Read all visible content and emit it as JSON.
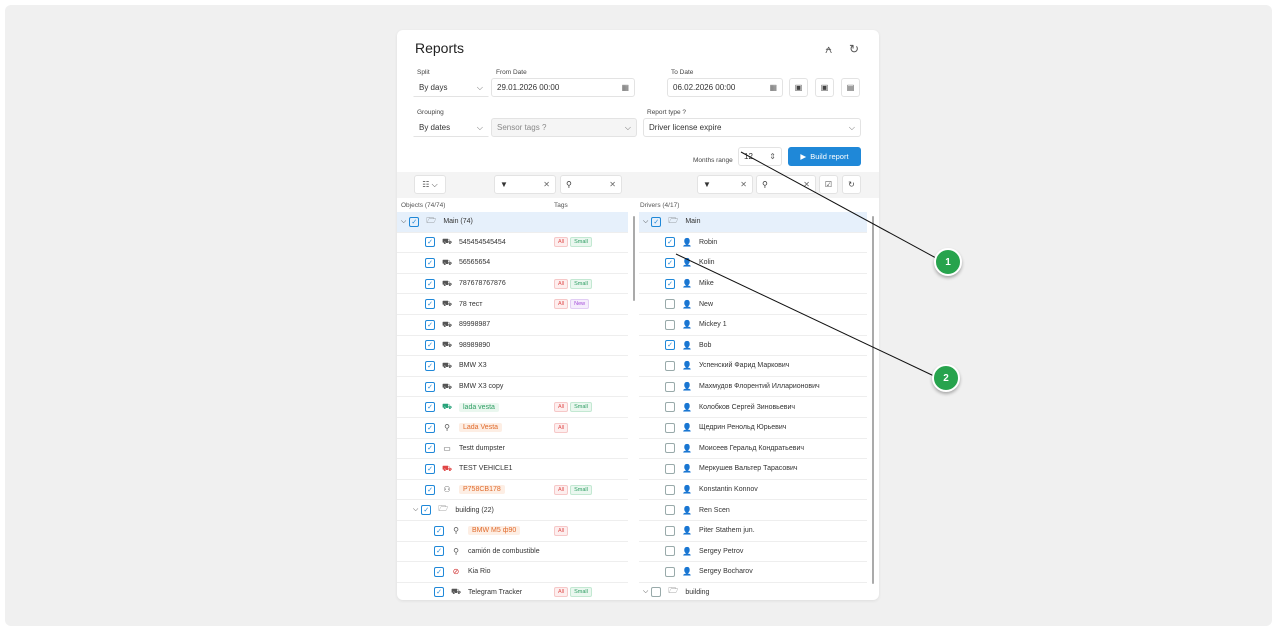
{
  "header": {
    "title": "Reports",
    "icons": [
      "user-settings-icon",
      "refresh-icon"
    ]
  },
  "form": {
    "split": {
      "label": "Split",
      "value": "By days"
    },
    "from": {
      "label": "From Date",
      "value": "29.01.2026 00:00"
    },
    "to": {
      "label": "To Date",
      "value": "06.02.2026 00:00"
    },
    "grouping": {
      "label": "Grouping",
      "value": "By dates"
    },
    "sensor_tags": {
      "placeholder": "Sensor tags"
    },
    "report_type": {
      "label": "Report type",
      "value": "Driver license expire"
    },
    "months_range": {
      "label": "Months range",
      "value": "12"
    },
    "build_label": "Build report"
  },
  "objects": {
    "header": "Objects (74/74)",
    "tags_header": "Tags",
    "rows": [
      {
        "name": "Main (74)",
        "level": 0,
        "group": true,
        "checked": true,
        "selected": true,
        "tags": []
      },
      {
        "name": "545454545454",
        "level": 1,
        "icon": "car",
        "checked": true,
        "tags": [
          "All",
          "Small"
        ]
      },
      {
        "name": "56565654",
        "level": 1,
        "icon": "car",
        "checked": true,
        "tags": []
      },
      {
        "name": "787678767876",
        "level": 1,
        "icon": "car",
        "checked": true,
        "tags": [
          "All",
          "Small"
        ]
      },
      {
        "name": "78 тест",
        "level": 1,
        "icon": "car",
        "checked": true,
        "tags": [
          "All",
          "New"
        ]
      },
      {
        "name": "89998987",
        "level": 1,
        "icon": "car",
        "checked": true,
        "tags": []
      },
      {
        "name": "98989890",
        "level": 1,
        "icon": "car",
        "checked": true,
        "tags": []
      },
      {
        "name": "BMW X3",
        "level": 1,
        "icon": "car",
        "checked": true,
        "tags": []
      },
      {
        "name": "BMW X3 copy",
        "level": 1,
        "icon": "car",
        "checked": true,
        "tags": []
      },
      {
        "name": "lada vesta",
        "level": 1,
        "icon": "car-green",
        "checked": true,
        "pill": "green",
        "tags": [
          "All",
          "Small"
        ]
      },
      {
        "name": "Lada Vesta",
        "level": 1,
        "icon": "pin",
        "checked": true,
        "pill": "orange",
        "tags": [
          "All"
        ]
      },
      {
        "name": "Testt dumpster",
        "level": 1,
        "icon": "dumpster",
        "checked": true,
        "tags": []
      },
      {
        "name": "TEST VEHICLE1",
        "level": 1,
        "icon": "car-red",
        "checked": true,
        "tags": []
      },
      {
        "name": "P758CB178",
        "level": 1,
        "icon": "person-walk",
        "checked": true,
        "pill": "orange",
        "tags": [
          "All",
          "Small"
        ]
      },
      {
        "name": "building (22)",
        "level": 1,
        "group": true,
        "checked": true,
        "tags": []
      },
      {
        "name": "BMW M5 ф90",
        "level": 2,
        "icon": "pin",
        "checked": true,
        "pill": "orange",
        "tags": [
          "All"
        ]
      },
      {
        "name": "camión de combustible",
        "level": 2,
        "icon": "pin",
        "checked": true,
        "tags": []
      },
      {
        "name": "Kia Rio",
        "level": 2,
        "icon": "no-car",
        "checked": true,
        "tags": []
      },
      {
        "name": "Telegram Tracker",
        "level": 2,
        "icon": "car",
        "checked": true,
        "tags": [
          "All",
          "Small"
        ]
      }
    ]
  },
  "drivers": {
    "header": "Drivers (4/17)",
    "rows": [
      {
        "name": "Main",
        "group": true,
        "checked": true,
        "selected": true
      },
      {
        "name": "Robin",
        "checked": true
      },
      {
        "name": "Kolin",
        "checked": true
      },
      {
        "name": "Mike",
        "checked": true
      },
      {
        "name": "New",
        "checked": false
      },
      {
        "name": "Mickey 1",
        "checked": false
      },
      {
        "name": "Bob",
        "checked": true
      },
      {
        "name": "Успенский Фарид Маркович",
        "checked": false
      },
      {
        "name": "Махмудов Флорентий Илларионович",
        "checked": false
      },
      {
        "name": "Колобков Сергей Зиновьевич",
        "checked": false
      },
      {
        "name": "Щедрин Ренольд Юрьевич",
        "checked": false
      },
      {
        "name": "Моисеев Геральд Кондратьевич",
        "checked": false
      },
      {
        "name": "Меркушев Вальтер Тарасович",
        "checked": false
      },
      {
        "name": "Konstantin Konnov",
        "checked": false
      },
      {
        "name": "Ren Scen",
        "checked": false
      },
      {
        "name": "Piter Stathem jun.",
        "checked": false
      },
      {
        "name": "Sergey Petrov",
        "checked": false
      },
      {
        "name": "Sergey Bocharov",
        "checked": false
      },
      {
        "name": "building",
        "group": true,
        "checked": false
      }
    ]
  },
  "callouts": [
    "1",
    "2"
  ],
  "colors": {
    "accent": "#1f88d8",
    "callout": "#27a34d"
  }
}
